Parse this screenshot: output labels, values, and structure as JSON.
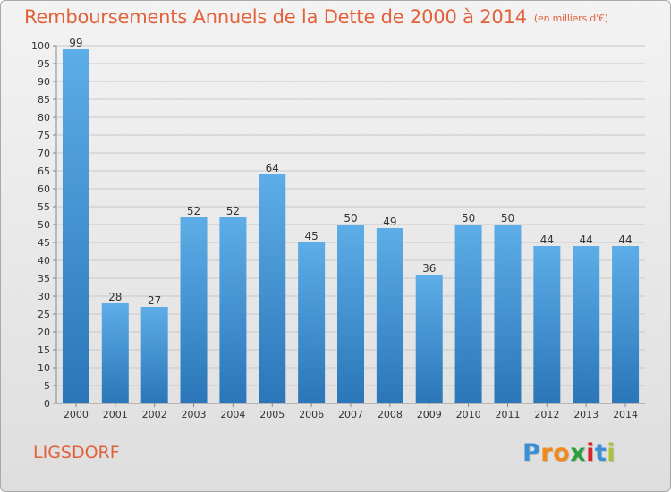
{
  "title": "Remboursements Annuels de la Dette de 2000 à 2014",
  "unit": "(en milliers d'€)",
  "commune": "LIGSDORF",
  "logo": {
    "letters": [
      "P",
      "r",
      "o",
      "x",
      "i",
      "t",
      "i"
    ],
    "colors": [
      "#3a8fd6",
      "#f08a1c",
      "#f08a1c",
      "#2e9e3c",
      "#d8242c",
      "#3a8fd6",
      "#a8c23a"
    ]
  },
  "colors": {
    "bar_top": "#5dade8",
    "bar_bottom": "#2a76b8",
    "title": "#e2613a",
    "grid": "#c8c8c8"
  },
  "chart_data": {
    "type": "bar",
    "title": "Remboursements Annuels de la Dette de 2000 à 2014",
    "categories": [
      "2000",
      "2001",
      "2002",
      "2003",
      "2004",
      "2005",
      "2006",
      "2007",
      "2008",
      "2009",
      "2010",
      "2011",
      "2012",
      "2013",
      "2014"
    ],
    "values": [
      99,
      28,
      27,
      52,
      52,
      64,
      45,
      50,
      49,
      36,
      50,
      50,
      44,
      44,
      44
    ],
    "ylim": [
      0,
      100
    ],
    "ytick_step": 5,
    "grid": true,
    "xlabel": "",
    "ylabel": ""
  }
}
